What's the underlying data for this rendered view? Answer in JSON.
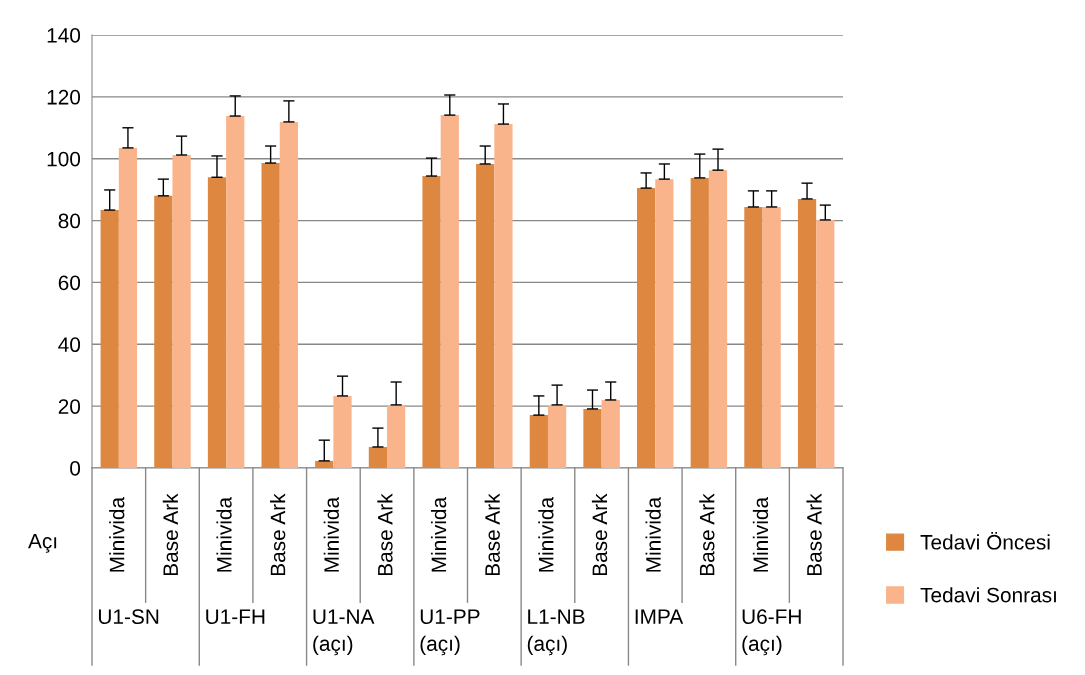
{
  "chart_data": {
    "type": "bar",
    "ylabel": "Açı",
    "categories": [
      "Minivida",
      "Base Ark",
      "Minivida",
      "Base Ark",
      "Minivida",
      "Base Ark",
      "Minivida",
      "Base Ark",
      "Minivida",
      "Base Ark",
      "Minivida",
      "Base Ark",
      "Minivida",
      "Base Ark"
    ],
    "annotations": [
      "U1-SN",
      "U1-FH",
      "U1-NA\n(açı)",
      "U1-PP\n(açı)",
      "L1-NB\n(açı)",
      "IMPA",
      "U6-FH\n(açı)"
    ],
    "series": [
      {
        "name": "Tedavi Öncesi",
        "color": "#dd8740",
        "values": [
          83.4,
          88,
          94,
          98.6,
          2.3,
          6.8,
          94.4,
          98.3,
          17.1,
          19.1,
          90.5,
          93.8,
          84.4,
          87
        ],
        "errors": [
          [
            83.4,
            89.9
          ],
          [
            88,
            93.4
          ],
          [
            94,
            100.9
          ],
          [
            98.6,
            104.1
          ],
          [
            2.3,
            9
          ],
          [
            6.8,
            12.9
          ],
          [
            94.4,
            100.2
          ],
          [
            98.3,
            104.1
          ],
          [
            17.1,
            23.3
          ],
          [
            19.1,
            25.2
          ],
          [
            90.5,
            95.4
          ],
          [
            93.8,
            101.5
          ],
          [
            84.4,
            89.6
          ],
          [
            87,
            92.1
          ]
        ]
      },
      {
        "name": "Tedavi Sonrası",
        "color": "#f9b48b",
        "values": [
          103.5,
          101.2,
          113.8,
          111.9,
          23.3,
          20.4,
          114.1,
          111.2,
          20.4,
          22,
          93.4,
          96.3,
          84.4,
          80.2
        ],
        "errors": [
          [
            103.5,
            110
          ],
          [
            101.2,
            107.3
          ],
          [
            113.8,
            120.3
          ],
          [
            111.9,
            118.7
          ],
          [
            23.3,
            29.7
          ],
          [
            20.4,
            27.8
          ],
          [
            114.1,
            120.6
          ],
          [
            111.2,
            117.7
          ],
          [
            20.4,
            26.8
          ],
          [
            22,
            27.8
          ],
          [
            93.4,
            98.3
          ],
          [
            96.3,
            103.1
          ],
          [
            84.4,
            89.6
          ],
          [
            80.2,
            85
          ]
        ]
      }
    ],
    "ylim": [
      0,
      140
    ],
    "yticks": [
      0,
      20,
      40,
      60,
      80,
      100,
      120,
      140
    ],
    "grid": "y",
    "legend": "right"
  }
}
